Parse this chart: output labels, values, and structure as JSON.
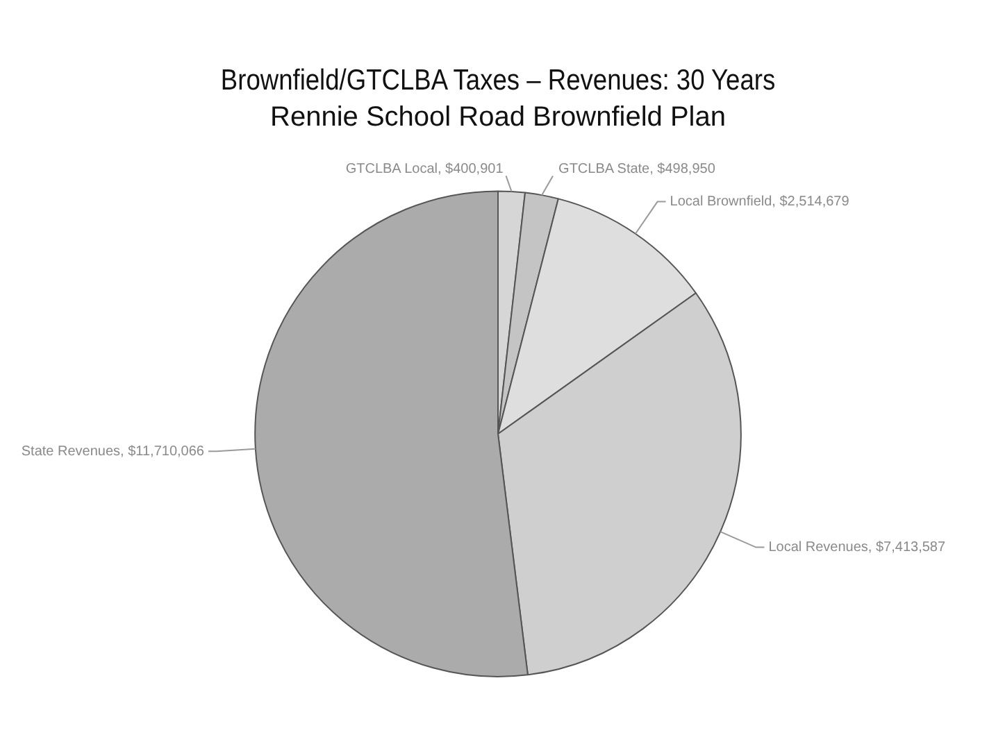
{
  "chart_data": {
    "type": "pie",
    "title": "Brownfield/GTCLBA Taxes – Revenues: 30 Years",
    "subtitle": "Rennie School Road Brownfield Plan",
    "categories": [
      "GTCLBA Local",
      "GTCLBA State",
      "Local Brownfield",
      "Local Revenues",
      "State Revenues"
    ],
    "values": [
      400901,
      498950,
      2514679,
      7413587,
      11710066
    ],
    "value_labels": [
      "$400,901",
      "$498,950",
      "$2,514,679",
      "$7,413,587",
      "$11,710,066"
    ],
    "colors": [
      "#d6d6d6",
      "#c4c4c4",
      "#dedede",
      "#cfcfcf",
      "#ababab"
    ],
    "legend": false
  }
}
